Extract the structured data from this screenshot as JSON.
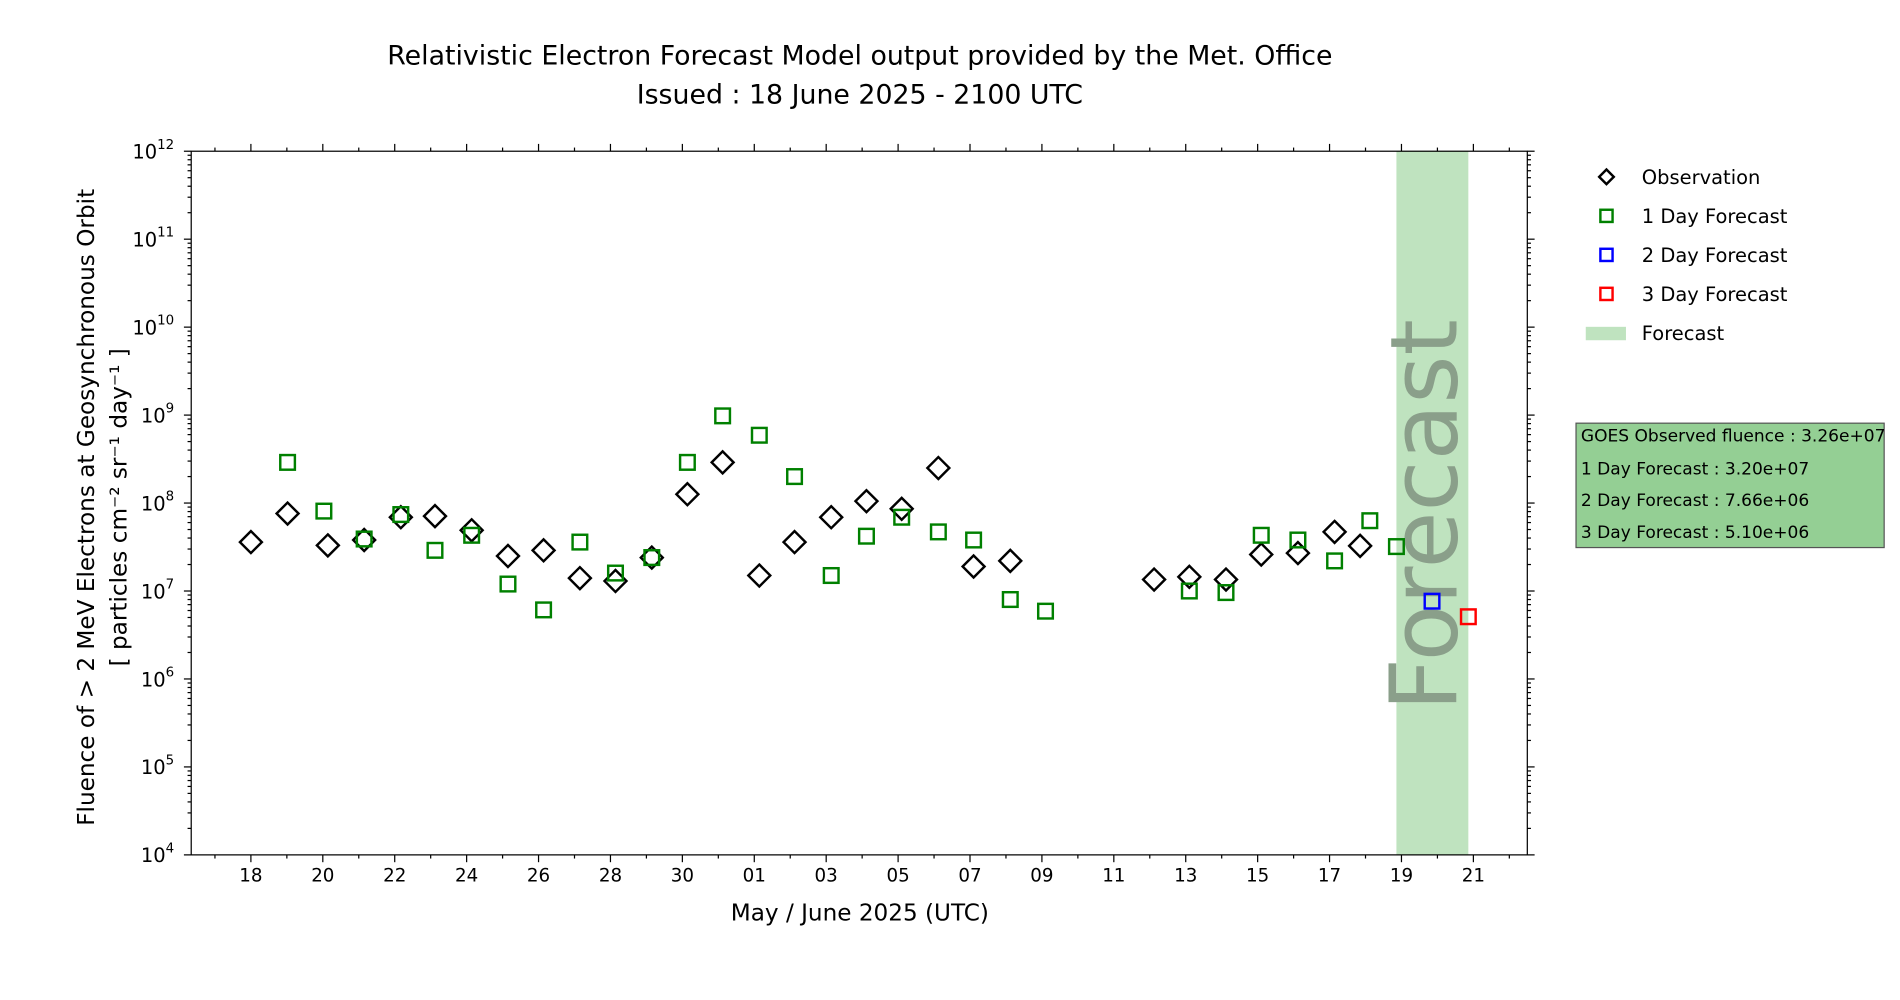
{
  "chart_data": {
    "type": "scatter",
    "title": "Relativistic Electron Forecast Model output provided by the Met. Office",
    "subtitle": "Issued : 18 June 2025 - 2100 UTC",
    "xlabel": "May / June 2025 (UTC)",
    "ylabel": "Fluence of > 2 MeV Electrons at Geosynchronous Orbit",
    "ylabel_units": "[ particles cm⁻² sr⁻¹ day⁻¹ ]",
    "x_units": "days since 18 May 2025",
    "xlim": [
      -1.66,
      35.5
    ],
    "ylim": [
      10000.0,
      1000000000000.0
    ],
    "yscale": "log",
    "grid": false,
    "x_ticks": [
      {
        "day": 0,
        "label": "18"
      },
      {
        "day": 2,
        "label": "20"
      },
      {
        "day": 4,
        "label": "22"
      },
      {
        "day": 6,
        "label": "24"
      },
      {
        "day": 8,
        "label": "26"
      },
      {
        "day": 10,
        "label": "28"
      },
      {
        "day": 12,
        "label": "30"
      },
      {
        "day": 14,
        "label": "01"
      },
      {
        "day": 16,
        "label": "03"
      },
      {
        "day": 18,
        "label": "05"
      },
      {
        "day": 20,
        "label": "07"
      },
      {
        "day": 22,
        "label": "09"
      },
      {
        "day": 24,
        "label": "11"
      },
      {
        "day": 26,
        "label": "13"
      },
      {
        "day": 28,
        "label": "15"
      },
      {
        "day": 30,
        "label": "17"
      },
      {
        "day": 32,
        "label": "19"
      },
      {
        "day": 34,
        "label": "21"
      }
    ],
    "y_ticks": [
      {
        "base": "10",
        "exp": "4"
      },
      {
        "base": "10",
        "exp": "5"
      },
      {
        "base": "10",
        "exp": "6"
      },
      {
        "base": "10",
        "exp": "7"
      },
      {
        "base": "10",
        "exp": "8"
      },
      {
        "base": "10",
        "exp": "9"
      },
      {
        "base": "10",
        "exp": "10"
      },
      {
        "base": "10",
        "exp": "11"
      },
      {
        "base": "10",
        "exp": "12"
      }
    ],
    "forecast_band": {
      "x": [
        31.86,
        33.86
      ],
      "label": "Forecast",
      "color": "#bfe3bf",
      "text_color": "#8a9f8a"
    },
    "series": [
      {
        "name": "Observation",
        "marker": "diamond",
        "color": "#000000",
        "x": [
          0,
          1.02,
          2.14,
          3.15,
          4.17,
          5.12,
          6.14,
          7.15,
          8.14,
          9.15,
          10.14,
          11.15,
          12.14,
          13.12,
          14.14,
          15.12,
          16.14,
          17.12,
          18.1,
          19.12,
          20.1,
          21.12,
          25.12,
          26.1,
          27.12,
          28.1,
          29.12,
          30.14,
          30.85
        ],
        "y": [
          36000000.0,
          76000000.0,
          33000000.0,
          38000000.0,
          69000000.0,
          71000000.0,
          49000000.0,
          25000000.0,
          29000000.0,
          14000000.0,
          13000000.0,
          24000000.0,
          126000000.0,
          290000000.0,
          15000000.0,
          36000000.0,
          69000000.0,
          105000000.0,
          86000000.0,
          250000000.0,
          19000000.0,
          22000000.0,
          13500000.0,
          14500000.0,
          13500000.0,
          26000000.0,
          27000000.0,
          47000000.0,
          32600000.0
        ]
      },
      {
        "name": "1 Day Forecast",
        "marker": "square",
        "color": "#008000",
        "x": [
          1.02,
          2.03,
          3.15,
          4.17,
          5.12,
          6.14,
          7.15,
          8.14,
          9.15,
          10.14,
          11.15,
          12.14,
          13.12,
          14.14,
          15.12,
          16.14,
          17.12,
          18.1,
          19.12,
          20.1,
          21.12,
          22.1,
          26.1,
          27.12,
          28.1,
          29.12,
          30.14,
          31.12,
          31.86
        ],
        "y": [
          290000000.0,
          81000000.0,
          39000000.0,
          74000000.0,
          29000000.0,
          43000000.0,
          12000000.0,
          6100000.0,
          36000000.0,
          16000000.0,
          24000000.0,
          290000000.0,
          980000000.0,
          590000000.0,
          200000000.0,
          15000000.0,
          42000000.0,
          69000000.0,
          47000000.0,
          38000000.0,
          8000000.0,
          5900000.0,
          10000000.0,
          9600000.0,
          43000000.0,
          38000000.0,
          22000000.0,
          63000000.0,
          32000000.0
        ]
      },
      {
        "name": "2 Day Forecast",
        "marker": "square",
        "color": "#0000ff",
        "x": [
          32.85
        ],
        "y": [
          7660000.0
        ]
      },
      {
        "name": "3 Day Forecast",
        "marker": "square",
        "color": "#ff0000",
        "x": [
          33.86
        ],
        "y": [
          5100000.0
        ]
      }
    ],
    "legend": {
      "placement": "outside-right",
      "entries": [
        "Observation",
        "1 Day Forecast",
        "2 Day Forecast",
        "3 Day Forecast",
        "Forecast"
      ]
    },
    "info_box": {
      "color": "#94cf94",
      "lines": [
        "GOES Observed fluence : 3.26e+07",
        "1 Day Forecast : 3.20e+07",
        "2 Day Forecast : 7.66e+06",
        "3 Day Forecast : 5.10e+06"
      ]
    }
  }
}
